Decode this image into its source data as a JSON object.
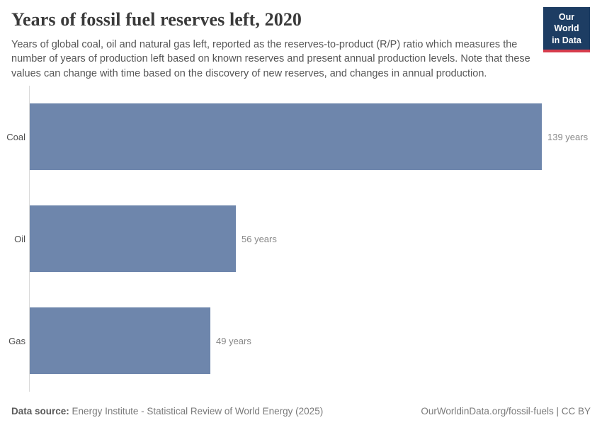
{
  "header": {
    "title": "Years of fossil fuel reserves left, 2020",
    "subtitle": "Years of global coal, oil and natural gas left, reported as the reserves-to-product (R/P) ratio which measures the number of years of production left based on known reserves and present annual production levels. Note that these values can change with time based on the discovery of new reserves, and changes in annual production.",
    "logo": {
      "line1": "Our World",
      "line2": "in Data",
      "bg": "#1d3d63",
      "stripe": "#d73c4c"
    }
  },
  "chart_data": {
    "type": "bar",
    "orientation": "horizontal",
    "title": "Years of fossil fuel reserves left, 2020",
    "categories": [
      "Coal",
      "Oil",
      "Gas"
    ],
    "values": [
      139,
      56,
      49
    ],
    "value_suffix": " years",
    "value_labels": [
      "139 years",
      "56 years",
      "49 years"
    ],
    "xlabel": "",
    "ylabel": "",
    "xlim": [
      0,
      139
    ],
    "grid": false,
    "legend": "none",
    "bar_color": "#6e86ac",
    "axis_color": "#dadada"
  },
  "footer": {
    "source_label": "Data source:",
    "source_text": "Energy Institute - Statistical Review of World Energy (2025)",
    "right_text": "OurWorldinData.org/fossil-fuels | CC BY"
  }
}
